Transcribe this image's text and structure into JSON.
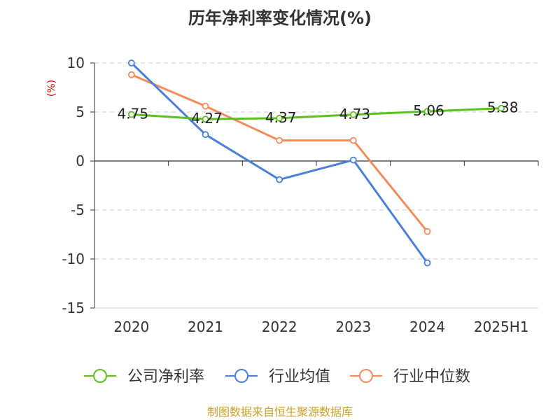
{
  "title": "历年净利率变化情况(%)",
  "unit": "(%)",
  "source": "制图数据来自恒生聚源数据库",
  "chart_data": {
    "type": "line",
    "title": "历年净利率变化情况(%)",
    "ylabel": "(%)",
    "xlabel": "",
    "categories": [
      "2020",
      "2021",
      "2022",
      "2023",
      "2024",
      "2025H1"
    ],
    "yticks": [
      "10",
      "5",
      "0",
      "-5",
      "-10",
      "-15"
    ],
    "ylim": [
      -15,
      10
    ],
    "grid": true,
    "legend_position": "bottom",
    "series": [
      {
        "name": "公司净利率",
        "color": "#5bc21d",
        "values": [
          4.75,
          4.27,
          4.37,
          4.73,
          5.06,
          5.38
        ],
        "labels": [
          "4.75",
          "4.27",
          "4.37",
          "4.73",
          "5.06",
          "5.38"
        ]
      },
      {
        "name": "行业均值",
        "color": "#4a7fdc",
        "values": [
          10.0,
          2.7,
          -1.9,
          0.1,
          -10.4,
          null
        ]
      },
      {
        "name": "行业中位数",
        "color": "#f58b58",
        "values": [
          8.8,
          5.6,
          2.1,
          2.1,
          -7.2,
          null
        ]
      }
    ]
  }
}
